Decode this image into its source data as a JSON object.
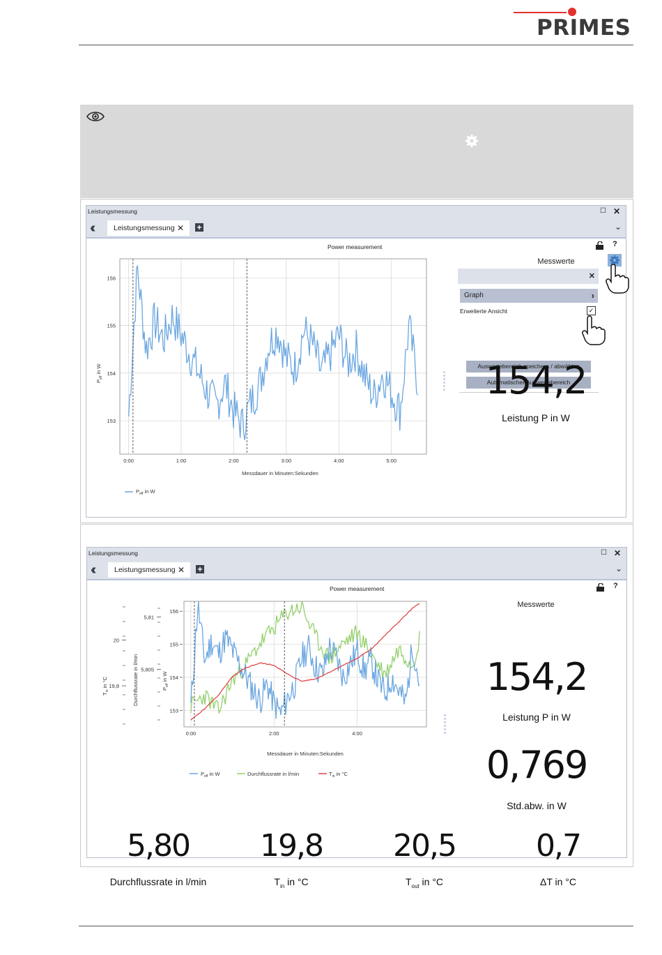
{
  "brand": {
    "name": "PRIMES",
    "accent": "#e3312d"
  },
  "top_window": {
    "title": "Leistungsmessung",
    "tab_label": "Leistungsmessung",
    "chart_title": "Power measurement",
    "panel_title": "Messwerte",
    "menu_graph": "Graph",
    "checkbox_label": "Erweiterte Ansicht",
    "btn_save_area": "Auswertebereich speichern / abwählen",
    "btn_auto_area": "Automatischer Auswertebereich",
    "big_value": "154,2",
    "big_label": "Leistung P in W",
    "legend": "in W",
    "xlabel": "Messdauer in Minuten:Sekunden",
    "ylabel": "in W"
  },
  "bottom_window": {
    "title": "Leistungsmessung",
    "tab_label": "Leistungsmessung",
    "chart_title": "Power measurement",
    "panel_title": "Messwerte",
    "value1": "154,2",
    "label1": "Leistung P in W",
    "value2": "0,769",
    "label2": "Std.abw. in W",
    "xlabel": "Messdauer in Minuten:Sekunden",
    "axis_flow": "Durchflussrate in l/min",
    "legend_flow": "Durchflussrate in l/min",
    "unit_w": "in W",
    "unit_c": "in °C",
    "bottom_values": [
      {
        "value": "5,80",
        "label": "Durchflussrate in l/min"
      },
      {
        "value": "19,8",
        "label_pre": "T",
        "label_sub": "in",
        "label_post": " in °C"
      },
      {
        "value": "20,5",
        "label_pre": "T",
        "label_sub": "out",
        "label_post": " in °C"
      },
      {
        "value": "0,7",
        "label": "ΔT in °C"
      }
    ]
  },
  "chart_data": [
    {
      "type": "line",
      "title": "Power measurement",
      "xlabel": "Messdauer in Minuten:Sekunden",
      "ylabel": "Peff in W",
      "x_ticks": [
        "0:00",
        "1:00",
        "2:00",
        "3:00",
        "4:00",
        "5:00"
      ],
      "y_ticks": [
        153,
        154,
        155,
        156
      ],
      "ylim": [
        152.3,
        156.4
      ],
      "xlim_seconds": [
        -10,
        340
      ],
      "series": [
        {
          "name": "Peff in W",
          "color": "#6aa6e0",
          "x_seconds": [
            0,
            10,
            20,
            30,
            40,
            50,
            60,
            70,
            80,
            90,
            100,
            110,
            120,
            130,
            140,
            150,
            160,
            170,
            180,
            190,
            200,
            210,
            220,
            230,
            240,
            250,
            260,
            270,
            280,
            290,
            300,
            310,
            320,
            330
          ],
          "values": [
            153.1,
            156.2,
            154.5,
            155.1,
            154.7,
            155.2,
            154.8,
            154.4,
            154.0,
            153.6,
            153.3,
            153.8,
            153.2,
            152.9,
            153.4,
            153.8,
            154.6,
            154.9,
            154.3,
            154.1,
            154.9,
            154.6,
            154.0,
            154.4,
            154.8,
            154.2,
            154.5,
            153.9,
            153.5,
            154.0,
            153.6,
            153.2,
            155.0,
            153.8
          ]
        }
      ],
      "markers_seconds": [
        5,
        135
      ]
    },
    {
      "type": "line",
      "title": "Power measurement",
      "xlabel": "Messdauer in Minuten:Sekunden",
      "x_ticks": [
        "0:00",
        "2:00",
        "4:00"
      ],
      "axes": {
        "power_ticks": [
          153,
          154,
          155,
          156
        ],
        "flow_ticks": [
          "5,805",
          "5,81"
        ],
        "temp_ticks": [
          "19,8",
          "20"
        ]
      },
      "xlim_seconds": [
        -10,
        340
      ],
      "series": [
        {
          "name": "Peff in W",
          "color": "#6aa6e0",
          "x_seconds": [
            0,
            10,
            20,
            30,
            40,
            50,
            60,
            70,
            80,
            90,
            100,
            110,
            120,
            130,
            140,
            150,
            160,
            170,
            180,
            190,
            200,
            210,
            220,
            230,
            240,
            250,
            260,
            270,
            280,
            290,
            300,
            310,
            320,
            330
          ],
          "values": [
            153.1,
            156.2,
            154.5,
            155.1,
            154.7,
            155.2,
            154.8,
            154.4,
            154.0,
            153.6,
            153.3,
            153.8,
            153.2,
            152.9,
            153.4,
            153.8,
            154.6,
            154.9,
            154.3,
            154.1,
            154.9,
            154.6,
            154.0,
            154.4,
            154.8,
            154.2,
            154.5,
            153.9,
            153.5,
            154.0,
            153.6,
            153.2,
            155.0,
            153.8
          ]
        },
        {
          "name": "Durchflussrate in l/min",
          "color": "#92cf6a",
          "x_seconds": [
            0,
            20,
            40,
            60,
            80,
            100,
            120,
            140,
            160,
            180,
            200,
            220,
            240,
            260,
            280,
            300,
            320,
            330
          ],
          "values": [
            5.8015,
            5.8025,
            5.801,
            5.804,
            5.8055,
            5.8075,
            5.809,
            5.8105,
            5.811,
            5.808,
            5.806,
            5.8075,
            5.8085,
            5.8065,
            5.8045,
            5.807,
            5.8055,
            5.808
          ]
        },
        {
          "name": "Tin in °C",
          "color": "#e04646",
          "x_seconds": [
            0,
            20,
            40,
            60,
            80,
            100,
            120,
            140,
            160,
            180,
            200,
            220,
            240,
            260,
            280,
            300,
            320,
            330
          ],
          "values": [
            19.65,
            19.7,
            19.76,
            19.84,
            19.88,
            19.9,
            19.89,
            19.85,
            19.82,
            19.83,
            19.86,
            19.89,
            19.92,
            19.96,
            20.02,
            20.08,
            20.14,
            20.16
          ]
        }
      ],
      "markers_seconds": [
        5,
        135
      ]
    }
  ]
}
